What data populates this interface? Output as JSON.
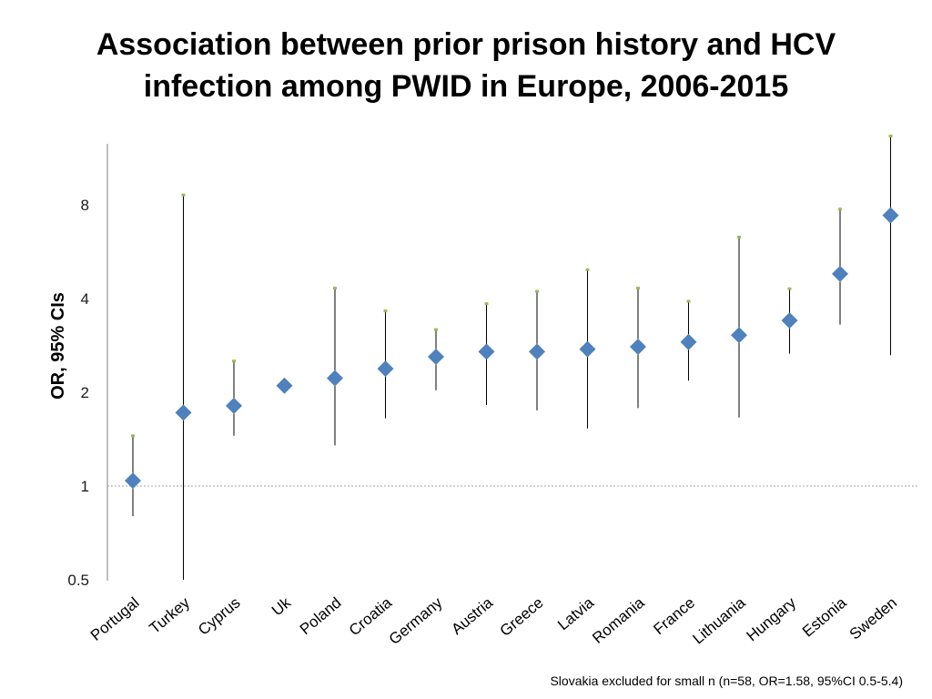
{
  "title_lines": [
    "Association between prior prison history and HCV",
    "infection among PWID in Europe, 2006-2015"
  ],
  "footnote": "Slovakia excluded for small n (n=58, OR=1.58, 95%CI 0.5-5.4)",
  "colors": {
    "marker": "#4F81BD",
    "whisker": "#000000",
    "cap": "#9BBB59",
    "axis": "#7f7f7f",
    "refline": "#a6a6a6"
  },
  "chart_data": {
    "type": "scatter",
    "title": "Association between prior prison history and HCV infection among PWID in Europe, 2006-2015",
    "xlabel": "",
    "ylabel": "OR, 95% CIs",
    "yscale": "log2",
    "ylim": [
      0.5,
      14
    ],
    "yticks": [
      0.5,
      1,
      2,
      4,
      8
    ],
    "ytick_labels": [
      "0.5",
      "1",
      "2",
      "4",
      "8"
    ],
    "reference_line": 1,
    "categories": [
      "Portugal",
      "Turkey",
      "Cyprus",
      "Uk",
      "Poland",
      "Croatia",
      "Germany",
      "Austria",
      "Greece",
      "Latvia",
      "Romania",
      "France",
      "Lithuania",
      "Hungary",
      "Estonia",
      "Sweden"
    ],
    "or": [
      1.04,
      1.72,
      1.81,
      2.1,
      2.22,
      2.38,
      2.6,
      2.7,
      2.7,
      2.75,
      2.8,
      2.9,
      3.05,
      3.4,
      4.8,
      7.4
    ],
    "ci_lower": [
      0.8,
      0.5,
      1.45,
      2.1,
      1.35,
      1.65,
      2.03,
      1.82,
      1.75,
      1.53,
      1.78,
      2.18,
      1.66,
      2.66,
      3.3,
      2.63
    ],
    "ci_upper": [
      1.45,
      8.6,
      2.52,
      2.17,
      4.32,
      3.65,
      3.18,
      3.85,
      4.22,
      4.95,
      4.32,
      3.92,
      6.3,
      4.3,
      7.75,
      13.3
    ]
  }
}
